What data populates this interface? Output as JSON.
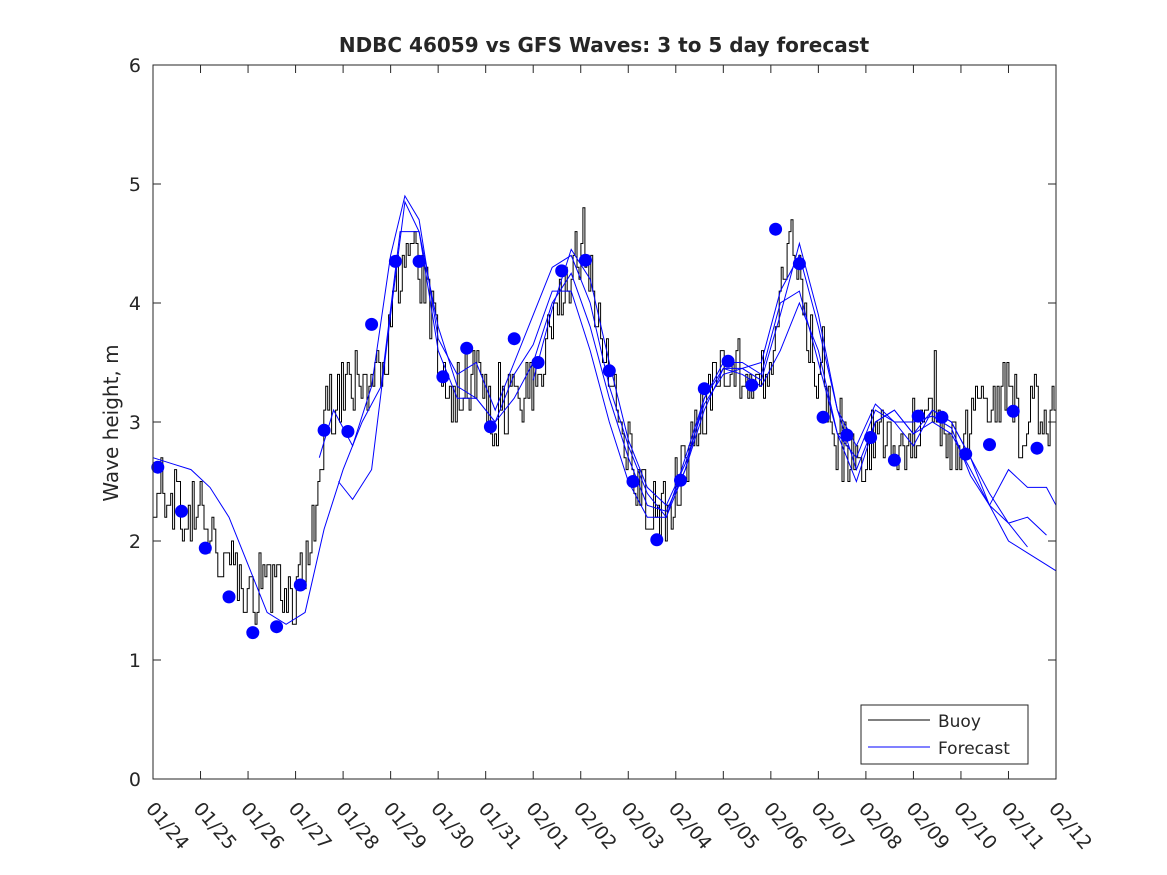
{
  "chart_data": {
    "type": "line",
    "title": "NDBC 46059 vs GFS Waves: 3 to 5 day forecast",
    "xlabel": "",
    "ylabel": "Wave height, m",
    "xlim": [
      0,
      19
    ],
    "ylim": [
      0,
      6
    ],
    "yticks": [
      0,
      1,
      2,
      3,
      4,
      5,
      6
    ],
    "xtick_labels": [
      "01/24",
      "01/25",
      "01/26",
      "01/27",
      "01/28",
      "01/29",
      "01/30",
      "01/31",
      "02/01",
      "02/02",
      "02/03",
      "02/04",
      "02/05",
      "02/06",
      "02/07",
      "02/08",
      "02/09",
      "02/10",
      "02/11",
      "02/12"
    ],
    "legend": {
      "location": "bottom-right",
      "entries": [
        "Buoy",
        "Forecast"
      ]
    },
    "colors": {
      "buoy": "#000000",
      "forecast": "#0000ff"
    },
    "buoy_trend": [
      [
        0,
        2.25
      ],
      [
        0.5,
        2.3
      ],
      [
        1,
        2.2
      ],
      [
        1.5,
        1.85
      ],
      [
        2,
        1.6
      ],
      [
        2.5,
        1.6
      ],
      [
        3,
        1.55
      ],
      [
        3.3,
        1.9
      ],
      [
        3.6,
        3.0
      ],
      [
        4,
        3.3
      ],
      [
        4.5,
        3.3
      ],
      [
        4.9,
        3.6
      ],
      [
        5.1,
        4.2
      ],
      [
        5.4,
        4.4
      ],
      [
        5.7,
        4.2
      ],
      [
        6,
        3.5
      ],
      [
        6.3,
        3.2
      ],
      [
        6.6,
        3.3
      ],
      [
        6.9,
        3.3
      ],
      [
        7.2,
        3.0
      ],
      [
        7.5,
        3.1
      ],
      [
        8,
        3.4
      ],
      [
        8.4,
        3.8
      ],
      [
        8.8,
        4.3
      ],
      [
        9.1,
        4.4
      ],
      [
        9.5,
        3.6
      ],
      [
        9.8,
        3.0
      ],
      [
        10.2,
        2.5
      ],
      [
        10.6,
        2.2
      ],
      [
        10.9,
        2.3
      ],
      [
        11.2,
        2.7
      ],
      [
        11.6,
        3.2
      ],
      [
        12,
        3.5
      ],
      [
        12.5,
        3.4
      ],
      [
        12.9,
        3.4
      ],
      [
        13.2,
        4.0
      ],
      [
        13.4,
        4.8
      ],
      [
        13.6,
        4.2
      ],
      [
        13.9,
        3.5
      ],
      [
        14.2,
        3.1
      ],
      [
        14.5,
        2.7
      ],
      [
        14.9,
        2.7
      ],
      [
        15.3,
        2.9
      ],
      [
        15.7,
        2.8
      ],
      [
        16.1,
        3.0
      ],
      [
        16.5,
        3.0
      ],
      [
        16.9,
        2.7
      ],
      [
        17.3,
        3.1
      ],
      [
        17.7,
        3.2
      ],
      [
        18,
        3.3
      ],
      [
        18.3,
        2.9
      ],
      [
        18.5,
        3.1
      ],
      [
        19,
        3.1
      ]
    ],
    "forecast_points": [
      [
        0.1,
        2.62
      ],
      [
        0.6,
        2.25
      ],
      [
        1.1,
        1.94
      ],
      [
        1.6,
        1.53
      ],
      [
        2.1,
        1.23
      ],
      [
        2.6,
        1.28
      ],
      [
        3.1,
        1.63
      ],
      [
        3.6,
        2.93
      ],
      [
        4.1,
        2.92
      ],
      [
        4.6,
        3.82
      ],
      [
        5.1,
        4.35
      ],
      [
        5.6,
        4.35
      ],
      [
        6.1,
        3.38
      ],
      [
        6.6,
        3.62
      ],
      [
        7.1,
        2.96
      ],
      [
        7.6,
        3.7
      ],
      [
        8.1,
        3.5
      ],
      [
        8.6,
        4.27
      ],
      [
        9.1,
        4.36
      ],
      [
        9.6,
        3.43
      ],
      [
        10.1,
        2.5
      ],
      [
        10.6,
        2.01
      ],
      [
        11.1,
        2.51
      ],
      [
        11.6,
        3.28
      ],
      [
        12.1,
        3.51
      ],
      [
        12.6,
        3.31
      ],
      [
        13.1,
        4.62
      ],
      [
        13.6,
        4.33
      ],
      [
        14.1,
        3.04
      ],
      [
        14.6,
        2.89
      ],
      [
        15.1,
        2.87
      ],
      [
        15.6,
        2.68
      ],
      [
        16.1,
        3.05
      ],
      [
        16.6,
        3.04
      ],
      [
        17.1,
        2.73
      ],
      [
        17.6,
        2.81
      ],
      [
        18.1,
        3.09
      ],
      [
        18.6,
        2.78
      ]
    ],
    "forecast_runs": [
      [
        [
          0,
          2.7
        ],
        [
          0.4,
          2.65
        ],
        [
          0.8,
          2.6
        ],
        [
          1.2,
          2.45
        ],
        [
          1.6,
          2.2
        ],
        [
          2,
          1.8
        ],
        [
          2.4,
          1.4
        ],
        [
          2.8,
          1.3
        ],
        [
          3.2,
          1.4
        ],
        [
          3.6,
          2.1
        ],
        [
          4,
          2.6
        ],
        [
          4.4,
          3.0
        ],
        [
          4.8,
          3.3
        ],
        [
          5.2,
          4.6
        ],
        [
          5.6,
          4.6
        ],
        [
          6,
          3.8
        ],
        [
          6.4,
          3.3
        ],
        [
          6.8,
          3.2
        ],
        [
          7.2,
          3.0
        ],
        [
          7.6,
          3.4
        ],
        [
          8,
          3.65
        ],
        [
          8.4,
          4.1
        ],
        [
          8.8,
          4.1
        ],
        [
          9.2,
          3.6
        ],
        [
          9.6,
          3.0
        ],
        [
          10,
          2.5
        ],
        [
          10.4,
          2.2
        ],
        [
          10.8,
          2.2
        ],
        [
          11.2,
          2.7
        ],
        [
          11.6,
          3.2
        ],
        [
          12,
          3.5
        ],
        [
          12.4,
          3.5
        ],
        [
          12.8,
          3.4
        ],
        [
          13.2,
          4.0
        ],
        [
          13.6,
          4.1
        ],
        [
          14,
          3.5
        ],
        [
          14.4,
          2.9
        ],
        [
          14.8,
          2.7
        ],
        [
          15.2,
          3.1
        ],
        [
          15.6,
          3.0
        ],
        [
          16,
          2.8
        ],
        [
          16.4,
          3.1
        ],
        [
          16.8,
          3.0
        ],
        [
          17.2,
          2.7
        ],
        [
          17.6,
          2.3
        ],
        [
          18,
          2.0
        ],
        [
          18.4,
          1.9
        ],
        [
          18.8,
          1.8
        ],
        [
          19,
          1.75
        ]
      ],
      [
        [
          3.9,
          2.5
        ],
        [
          4.2,
          2.35
        ],
        [
          4.6,
          2.6
        ],
        [
          5.0,
          3.9
        ],
        [
          5.3,
          4.85
        ],
        [
          5.6,
          4.6
        ],
        [
          6.0,
          3.6
        ],
        [
          6.4,
          3.2
        ],
        [
          6.8,
          3.2
        ],
        [
          7.2,
          3.0
        ],
        [
          7.6,
          3.2
        ],
        [
          8.0,
          3.5
        ],
        [
          8.4,
          4.0
        ],
        [
          8.8,
          4.25
        ],
        [
          9.2,
          3.8
        ],
        [
          9.6,
          3.2
        ],
        [
          10.0,
          2.7
        ],
        [
          10.4,
          2.3
        ],
        [
          10.8,
          2.25
        ],
        [
          11.2,
          2.6
        ],
        [
          11.6,
          3.1
        ],
        [
          12.0,
          3.45
        ],
        [
          12.4,
          3.4
        ],
        [
          12.8,
          3.3
        ],
        [
          13.2,
          3.6
        ],
        [
          13.6,
          4.0
        ],
        [
          14.0,
          3.6
        ],
        [
          14.4,
          2.9
        ],
        [
          14.8,
          2.5
        ],
        [
          15.2,
          3.0
        ],
        [
          15.6,
          3.1
        ],
        [
          16.0,
          2.9
        ],
        [
          16.4,
          3.0
        ],
        [
          16.8,
          2.9
        ],
        [
          17.2,
          2.6
        ],
        [
          17.6,
          2.3
        ],
        [
          18.0,
          2.15
        ],
        [
          18.4,
          1.95
        ]
      ],
      [
        [
          3.5,
          2.7
        ],
        [
          3.8,
          3.1
        ],
        [
          4.2,
          2.8
        ],
        [
          4.6,
          3.3
        ],
        [
          5.0,
          4.4
        ],
        [
          5.3,
          4.9
        ],
        [
          5.6,
          4.7
        ],
        [
          6.0,
          3.7
        ],
        [
          6.4,
          3.4
        ],
        [
          6.8,
          3.5
        ],
        [
          7.2,
          3.1
        ],
        [
          7.6,
          3.5
        ],
        [
          8.0,
          3.9
        ],
        [
          8.4,
          4.3
        ],
        [
          8.8,
          4.4
        ],
        [
          9.2,
          4.0
        ],
        [
          9.6,
          3.3
        ],
        [
          10.0,
          2.8
        ],
        [
          10.4,
          2.4
        ],
        [
          10.8,
          2.2
        ],
        [
          11.2,
          2.6
        ],
        [
          11.6,
          3.2
        ],
        [
          12.0,
          3.45
        ],
        [
          12.4,
          3.45
        ],
        [
          12.8,
          3.5
        ],
        [
          13.2,
          4.1
        ],
        [
          13.6,
          4.4
        ],
        [
          14.0,
          3.8
        ],
        [
          14.4,
          3.1
        ],
        [
          14.8,
          2.6
        ],
        [
          15.2,
          3.0
        ],
        [
          15.6,
          3.1
        ],
        [
          16.0,
          2.9
        ],
        [
          16.4,
          3.1
        ],
        [
          16.8,
          3.0
        ],
        [
          17.2,
          2.7
        ],
        [
          17.6,
          2.4
        ],
        [
          18.0,
          2.15
        ],
        [
          18.4,
          2.2
        ],
        [
          18.8,
          2.05
        ]
      ],
      [
        [
          8.0,
          3.35
        ],
        [
          8.4,
          3.95
        ],
        [
          8.8,
          4.45
        ],
        [
          9.2,
          4.2
        ],
        [
          9.6,
          3.5
        ],
        [
          10.0,
          2.85
        ],
        [
          10.4,
          2.45
        ],
        [
          10.8,
          2.3
        ],
        [
          11.2,
          2.65
        ],
        [
          11.6,
          3.15
        ],
        [
          12.0,
          3.4
        ],
        [
          12.4,
          3.45
        ],
        [
          12.8,
          3.35
        ],
        [
          13.2,
          3.9
        ],
        [
          13.6,
          4.5
        ],
        [
          14.0,
          3.9
        ],
        [
          14.4,
          3.1
        ],
        [
          14.8,
          2.8
        ],
        [
          15.2,
          3.15
        ],
        [
          15.6,
          3.0
        ],
        [
          16.0,
          3.0
        ],
        [
          16.4,
          3.05
        ],
        [
          16.8,
          2.95
        ],
        [
          17.2,
          2.55
        ],
        [
          17.6,
          2.3
        ],
        [
          18.0,
          2.6
        ],
        [
          18.4,
          2.45
        ],
        [
          18.8,
          2.45
        ],
        [
          19,
          2.3
        ]
      ]
    ]
  }
}
